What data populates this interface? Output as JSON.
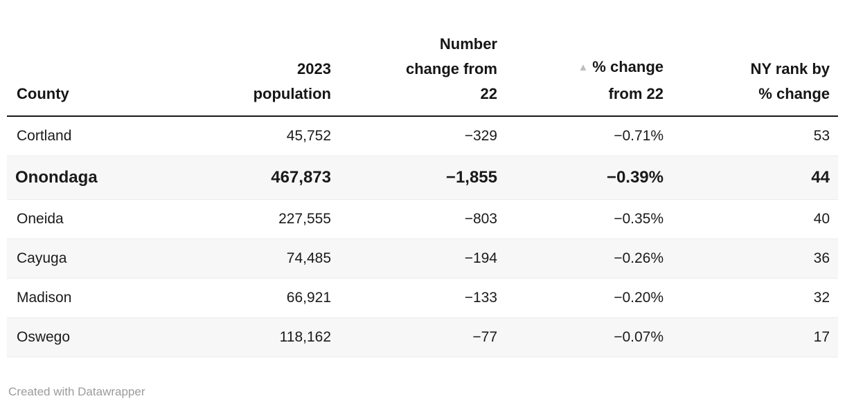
{
  "table": {
    "columns": {
      "county": {
        "label": "County"
      },
      "population": {
        "line1": "2023",
        "line2": "population"
      },
      "number_change": {
        "line1": "Number",
        "line2": "change from",
        "line3": "22"
      },
      "pct_change": {
        "sort_icon": "▲",
        "line1": "% change",
        "line2": "from 22"
      },
      "rank": {
        "line1": "NY rank by",
        "line2": "% change"
      }
    },
    "rows": [
      {
        "county": "Cortland",
        "population": "45,752",
        "number_change": "−329",
        "pct_change": "−0.71%",
        "rank": "53"
      },
      {
        "county": "Onondaga",
        "population": "467,873",
        "number_change": "−1,855",
        "pct_change": "−0.39%",
        "rank": "44"
      },
      {
        "county": "Oneida",
        "population": "227,555",
        "number_change": "−803",
        "pct_change": "−0.35%",
        "rank": "40"
      },
      {
        "county": "Cayuga",
        "population": "74,485",
        "number_change": "−194",
        "pct_change": "−0.26%",
        "rank": "36"
      },
      {
        "county": "Madison",
        "population": "66,921",
        "number_change": "−133",
        "pct_change": "−0.20%",
        "rank": "32"
      },
      {
        "county": "Oswego",
        "population": "118,162",
        "number_change": "−77",
        "pct_change": "−0.07%",
        "rank": "17"
      }
    ],
    "highlighted_row": "Onondaga",
    "sort": {
      "column": "% change from 22",
      "direction": "ascending"
    }
  },
  "footer": {
    "credit": "Created with Datawrapper"
  },
  "colors": {
    "header_text": "#161616",
    "body_text": "#1a1a1a",
    "header_border": "#181818",
    "row_divider": "#ebebeb",
    "stripe_background": "#f7f7f7",
    "sort_icon": "#bdbdbd",
    "footer_text": "#9b9b9b"
  },
  "chart_data": {
    "type": "table",
    "title": "",
    "columns": [
      "County",
      "2023 population",
      "Number change from 22",
      "% change from 22",
      "NY rank by % change"
    ],
    "rows": [
      [
        "Cortland",
        45752,
        -329,
        -0.71,
        53
      ],
      [
        "Onondaga",
        467873,
        -1855,
        -0.39,
        44
      ],
      [
        "Oneida",
        227555,
        -803,
        -0.35,
        40
      ],
      [
        "Cayuga",
        74485,
        -194,
        -0.26,
        36
      ],
      [
        "Madison",
        66921,
        -133,
        -0.2,
        32
      ],
      [
        "Oswego",
        118162,
        -77,
        -0.07,
        17
      ]
    ],
    "highlighted_row": "Onondaga",
    "sorted_by_column": "% change from 22",
    "sort_direction": "ascending",
    "credit": "Created with Datawrapper"
  }
}
